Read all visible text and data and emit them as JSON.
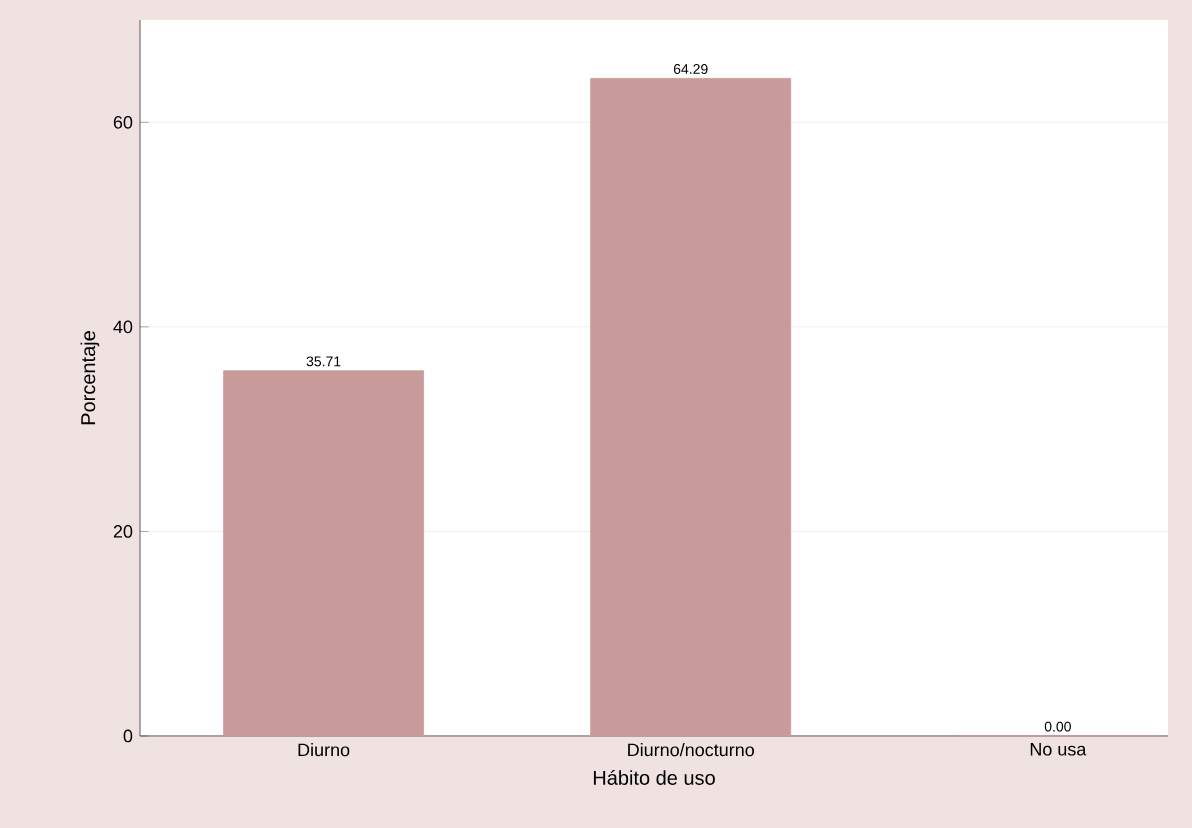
{
  "chart_data": {
    "type": "bar",
    "xlabel": "Hábito de uso",
    "ylabel": "Porcentaje",
    "categories": [
      "Diurno",
      "Diurno/nocturno",
      "No usa"
    ],
    "values": [
      35.71,
      64.29,
      0.0
    ],
    "value_labels": [
      "35.71",
      "64.29",
      "0.00"
    ],
    "color": "#c99a9a",
    "ylim": [
      0,
      70
    ],
    "yticks": [
      0,
      20,
      40,
      60
    ],
    "grid": "y"
  }
}
